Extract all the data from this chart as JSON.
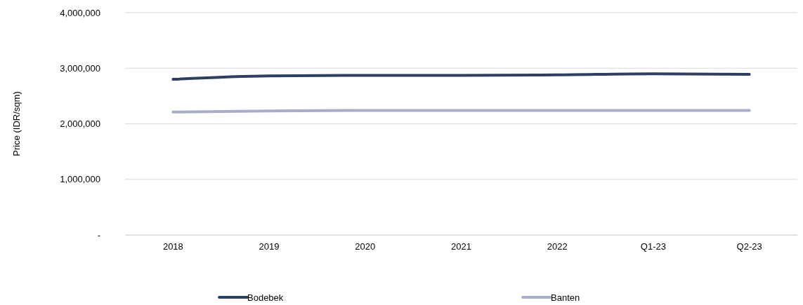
{
  "chart_data": {
    "type": "line",
    "ylabel": "Price (IDR/sqm)",
    "categories": [
      "2018",
      "2019",
      "2020",
      "2021",
      "2022",
      "Q1-23",
      "Q2-23"
    ],
    "series": [
      {
        "name": "Bodebek",
        "color": "#2e3f63",
        "values": [
          2800000,
          2860000,
          2870000,
          2870000,
          2880000,
          2900000,
          2890000
        ]
      },
      {
        "name": "Banten",
        "color": "#a7aec9",
        "values": [
          2210000,
          2230000,
          2240000,
          2240000,
          2240000,
          2240000,
          2240000
        ]
      }
    ],
    "ylim": [
      0,
      4000000
    ],
    "yticks": [
      {
        "value": 0,
        "label": "-"
      },
      {
        "value": 1000000,
        "label": "1,000,000"
      },
      {
        "value": 2000000,
        "label": "2,000,000"
      },
      {
        "value": 3000000,
        "label": "3,000,000"
      },
      {
        "value": 4000000,
        "label": "4,000,000"
      }
    ],
    "grid": "y",
    "legend": "bottom",
    "marker": "none",
    "line_style": "solid"
  }
}
